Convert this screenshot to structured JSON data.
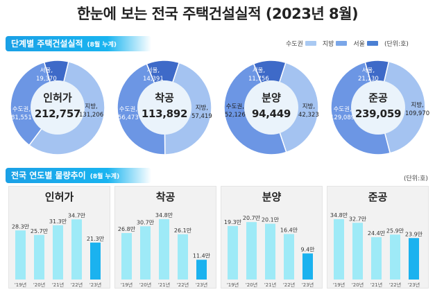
{
  "title": "한눈에 보는 전국 주택건설실적 (2023년 8월)",
  "section1": {
    "label": "단계별 주택건설실적",
    "note": "(8월 누계)"
  },
  "section2": {
    "label": "전국 연도별 물량추이",
    "note": "(8월 누계)"
  },
  "legend": [
    {
      "label": "수도권",
      "color": "#a9c9f2"
    },
    {
      "label": "지방",
      "color": "#7aa6e8"
    },
    {
      "label": "서울",
      "color": "#4a7fd3"
    }
  ],
  "unit_top": "(단위:호)",
  "unit_bottom": "(단위:호)",
  "colors": {
    "capital": "#6c96e4",
    "local": "#a4c3f1",
    "seoul": "#3e6ac8",
    "bar": "#9eeaf7",
    "bar_current": "#1bb2ef",
    "panel_bg": "#f2f2f2"
  },
  "chart_data": [
    {
      "type": "pie",
      "title": "인허가",
      "total": "212,757",
      "slices": [
        {
          "name": "서울",
          "label": "서울,",
          "value": 19370,
          "value_label": "19,370"
        },
        {
          "name": "지방",
          "label": "지방,",
          "value": 131206,
          "value_label": "131,206"
        },
        {
          "name": "수도권",
          "label": "수도권,",
          "value": 81551,
          "value_label": "81,551"
        }
      ]
    },
    {
      "type": "pie",
      "title": "착공",
      "total": "113,892",
      "slices": [
        {
          "name": "서울",
          "label": "서울,",
          "value": 14391,
          "value_label": "14,391"
        },
        {
          "name": "지방",
          "label": "지방,",
          "value": 57419,
          "value_label": "57,419"
        },
        {
          "name": "수도권",
          "label": "수도권,",
          "value": 56473,
          "value_label": "56,473"
        }
      ]
    },
    {
      "type": "pie",
      "title": "분양",
      "total": "94,449",
      "slices": [
        {
          "name": "서울",
          "label": "서울,",
          "value": 11756,
          "value_label": "11,756"
        },
        {
          "name": "지방",
          "label": "지방,",
          "value": 42323,
          "value_label": "42,323"
        },
        {
          "name": "수도권",
          "label": "수도권,",
          "value": 52126,
          "value_label": "52,126"
        }
      ]
    },
    {
      "type": "pie",
      "title": "준공",
      "total": "239,059",
      "slices": [
        {
          "name": "서울",
          "label": "서울,",
          "value": 21130,
          "value_label": "21,130"
        },
        {
          "name": "지방",
          "label": "지방,",
          "value": 109970,
          "value_label": "109,970"
        },
        {
          "name": "수도권",
          "label": "수도권,",
          "value": 129089,
          "value_label": "129,089"
        }
      ]
    },
    {
      "type": "bar",
      "title": "인허가",
      "categories": [
        "'19년",
        "'20년",
        "'21년",
        "'22년",
        "'23년"
      ],
      "values": [
        28.3,
        25.7,
        31.3,
        34.7,
        21.3
      ],
      "value_labels": [
        "28.3만",
        "25.7만",
        "31.3만",
        "34.7만",
        "21.3만"
      ],
      "ylim": [
        0,
        40
      ]
    },
    {
      "type": "bar",
      "title": "착공",
      "categories": [
        "'19년",
        "'20년",
        "'21년",
        "'22년",
        "'23년"
      ],
      "values": [
        26.8,
        30.7,
        34.8,
        26.1,
        11.4
      ],
      "value_labels": [
        "26.8만",
        "30.7만",
        "34.8만",
        "26.1만",
        "11.4만"
      ],
      "ylim": [
        0,
        40
      ]
    },
    {
      "type": "bar",
      "title": "분양",
      "categories": [
        "'19년",
        "'20년",
        "'21년",
        "'22년",
        "'23년"
      ],
      "values": [
        19.3,
        20.7,
        20.1,
        16.4,
        9.4
      ],
      "value_labels": [
        "19.3만",
        "20.7만",
        "20.1만",
        "16.4만",
        "9.4만"
      ],
      "ylim": [
        0,
        25
      ]
    },
    {
      "type": "bar",
      "title": "준공",
      "categories": [
        "'19년",
        "'20년",
        "'21년",
        "'22년",
        "'23년"
      ],
      "values": [
        34.8,
        32.7,
        24.4,
        25.9,
        23.9
      ],
      "value_labels": [
        "34.8만",
        "32.7만",
        "24.4만",
        "25.9만",
        "23.9만"
      ],
      "ylim": [
        0,
        40
      ]
    }
  ]
}
